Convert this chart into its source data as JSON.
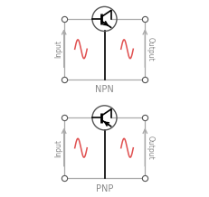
{
  "bg_color": "#ffffff",
  "box_color": "#aaaaaa",
  "transistor_circle_color": "#555555",
  "transistor_line_color": "#000000",
  "arrow_color": "#aaaaaa",
  "sine_color": "#e05050",
  "text_color": "#888888",
  "corner_dot_color": "#555555",
  "label_npn": "NPN",
  "label_pnp": "PNP",
  "label_input": "Input",
  "label_output": "Output",
  "fig_width": 2.31,
  "fig_height": 2.18,
  "dpi": 100
}
